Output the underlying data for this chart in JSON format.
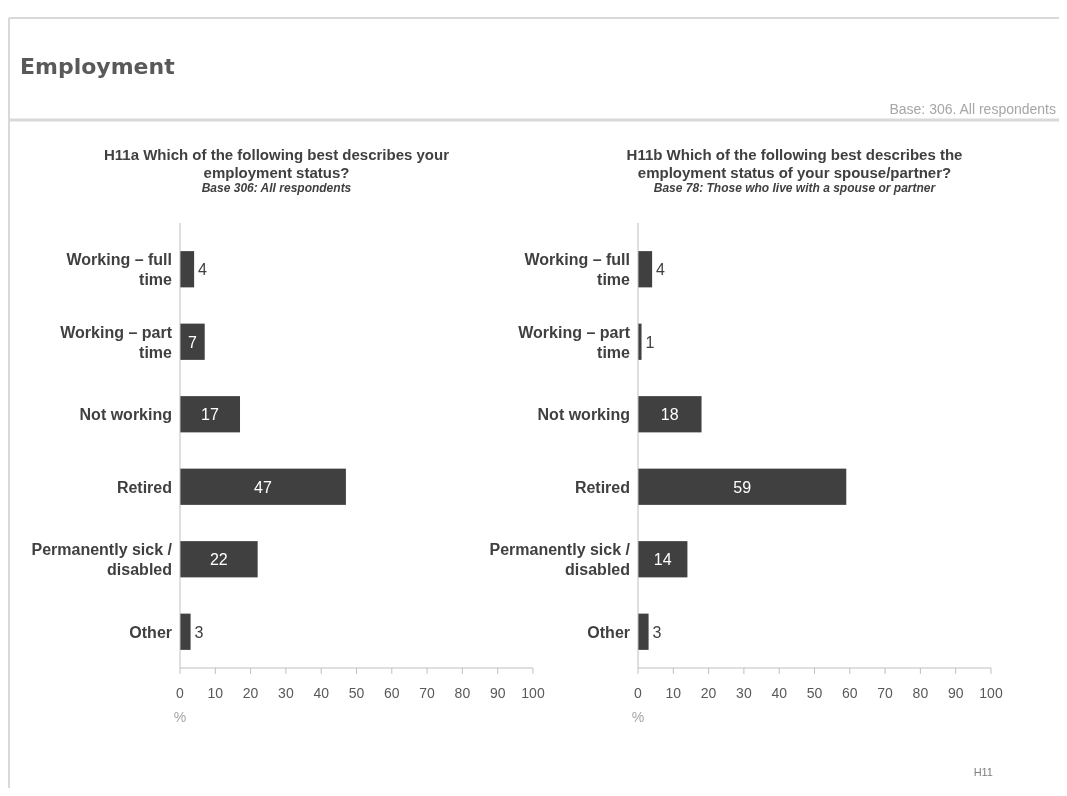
{
  "chart_data": [
    {
      "type": "bar",
      "orientation": "horizontal",
      "title": "H11a Which of the following best describes your employment status?",
      "subtitle": "Base 306: All respondents",
      "xlabel": "%",
      "categories": [
        "Working – full time",
        "Working – part time",
        "Not working",
        "Retired",
        "Permanently sick / disabled",
        "Other"
      ],
      "values": [
        4,
        7,
        17,
        47,
        22,
        3
      ],
      "color": "#404040",
      "data_labels": true,
      "xlim": [
        0,
        100
      ],
      "xticks": [
        0,
        10,
        20,
        30,
        40,
        50,
        60,
        70,
        80,
        90,
        100
      ],
      "grid": false,
      "annotations": [
        "Employment",
        "Base: 306. All respondents",
        "H11"
      ]
    },
    {
      "type": "bar",
      "orientation": "horizontal",
      "title": "H11b Which of the following best describes the employment status of your spouse/partner?",
      "subtitle": "Base 78: Those who live with a spouse or partner",
      "xlabel": "%",
      "categories": [
        "Working – full time",
        "Working – part time",
        "Not working",
        "Retired",
        "Permanently sick / disabled",
        "Other"
      ],
      "values": [
        4,
        1,
        18,
        59,
        14,
        3
      ],
      "color": "#404040",
      "data_labels": true,
      "xlim": [
        0,
        100
      ],
      "xticks": [
        0,
        10,
        20,
        30,
        40,
        50,
        60,
        70,
        80,
        90,
        100
      ],
      "grid": false
    }
  ]
}
